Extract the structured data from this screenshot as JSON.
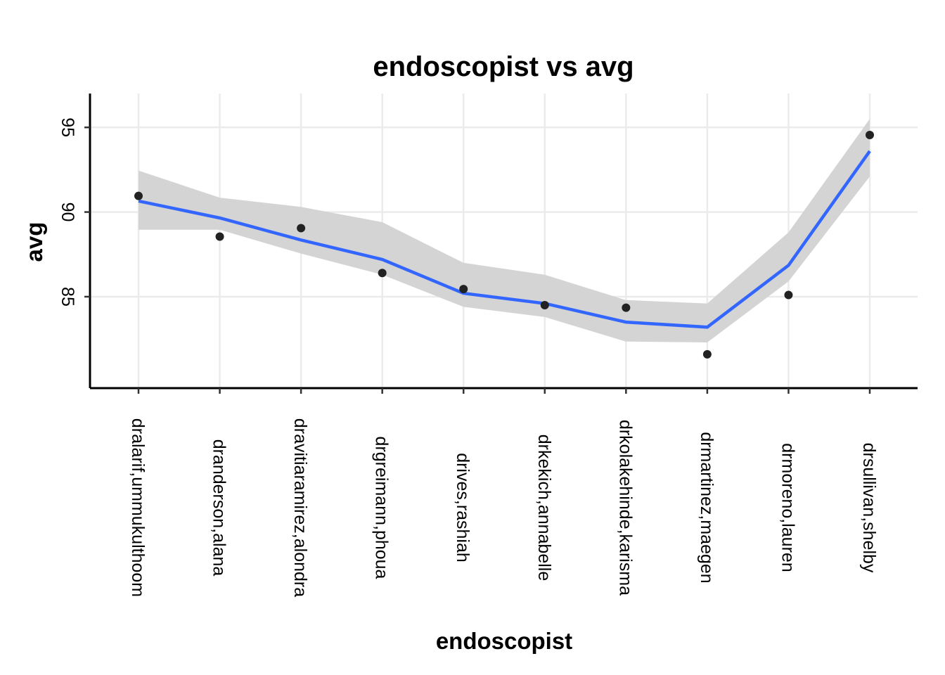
{
  "chart_data": {
    "type": "scatter",
    "title": "endoscopist vs avg",
    "xlabel": "endoscopist",
    "ylabel": "avg",
    "categories": [
      "dralarif,ummukulthoom",
      "dranderson,alana",
      "dravitiaramirez,alondra",
      "drgreimann,phoua",
      "drives,rashiah",
      "drkekich,annabelle",
      "drkolakehinde,karisma",
      "drmartinez,maegen",
      "drmoreno,lauren",
      "drsullivan,shelby"
    ],
    "yticks": [
      85,
      90,
      95
    ],
    "ylim": [
      79.6,
      97.0
    ],
    "grid": true,
    "points": [
      90.95,
      88.55,
      89.05,
      86.4,
      85.45,
      84.5,
      84.35,
      81.6,
      85.1,
      94.55
    ],
    "smooth": {
      "fit": [
        90.65,
        89.65,
        88.35,
        87.2,
        85.2,
        84.6,
        83.5,
        83.2,
        86.85,
        93.6
      ],
      "lower": [
        88.95,
        88.95,
        87.55,
        86.3,
        84.4,
        83.8,
        82.35,
        82.3,
        85.9,
        92.1
      ],
      "upper": [
        92.45,
        90.85,
        90.3,
        89.4,
        87.0,
        86.3,
        84.8,
        84.6,
        88.8,
        95.5
      ]
    },
    "colors": {
      "line": "#3366ff",
      "ribbon": "#d4d4d4",
      "points": "#222222"
    }
  }
}
